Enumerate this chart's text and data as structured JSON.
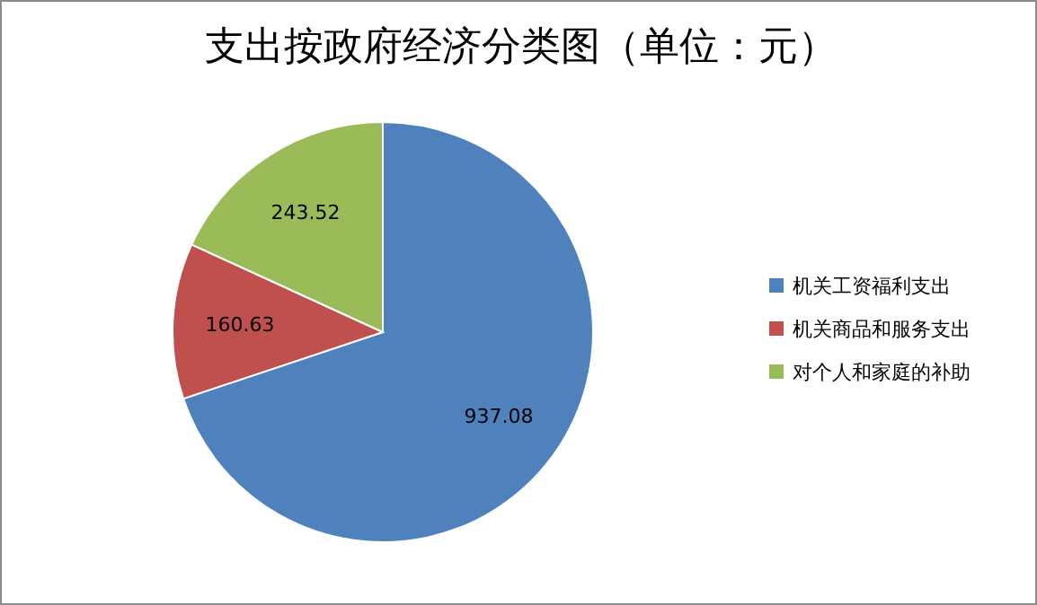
{
  "chart_data": {
    "type": "pie",
    "title": "支出按政府经济分类图（单位：元）",
    "categories": [
      "机关工资福利支出",
      "机关商品和服务支出",
      "对个人和家庭的补助"
    ],
    "values": [
      937.08,
      160.63,
      243.52
    ],
    "colors": [
      "#4f81bd",
      "#c0504d",
      "#9bbb59"
    ],
    "data_labels": true,
    "legend": "right"
  }
}
